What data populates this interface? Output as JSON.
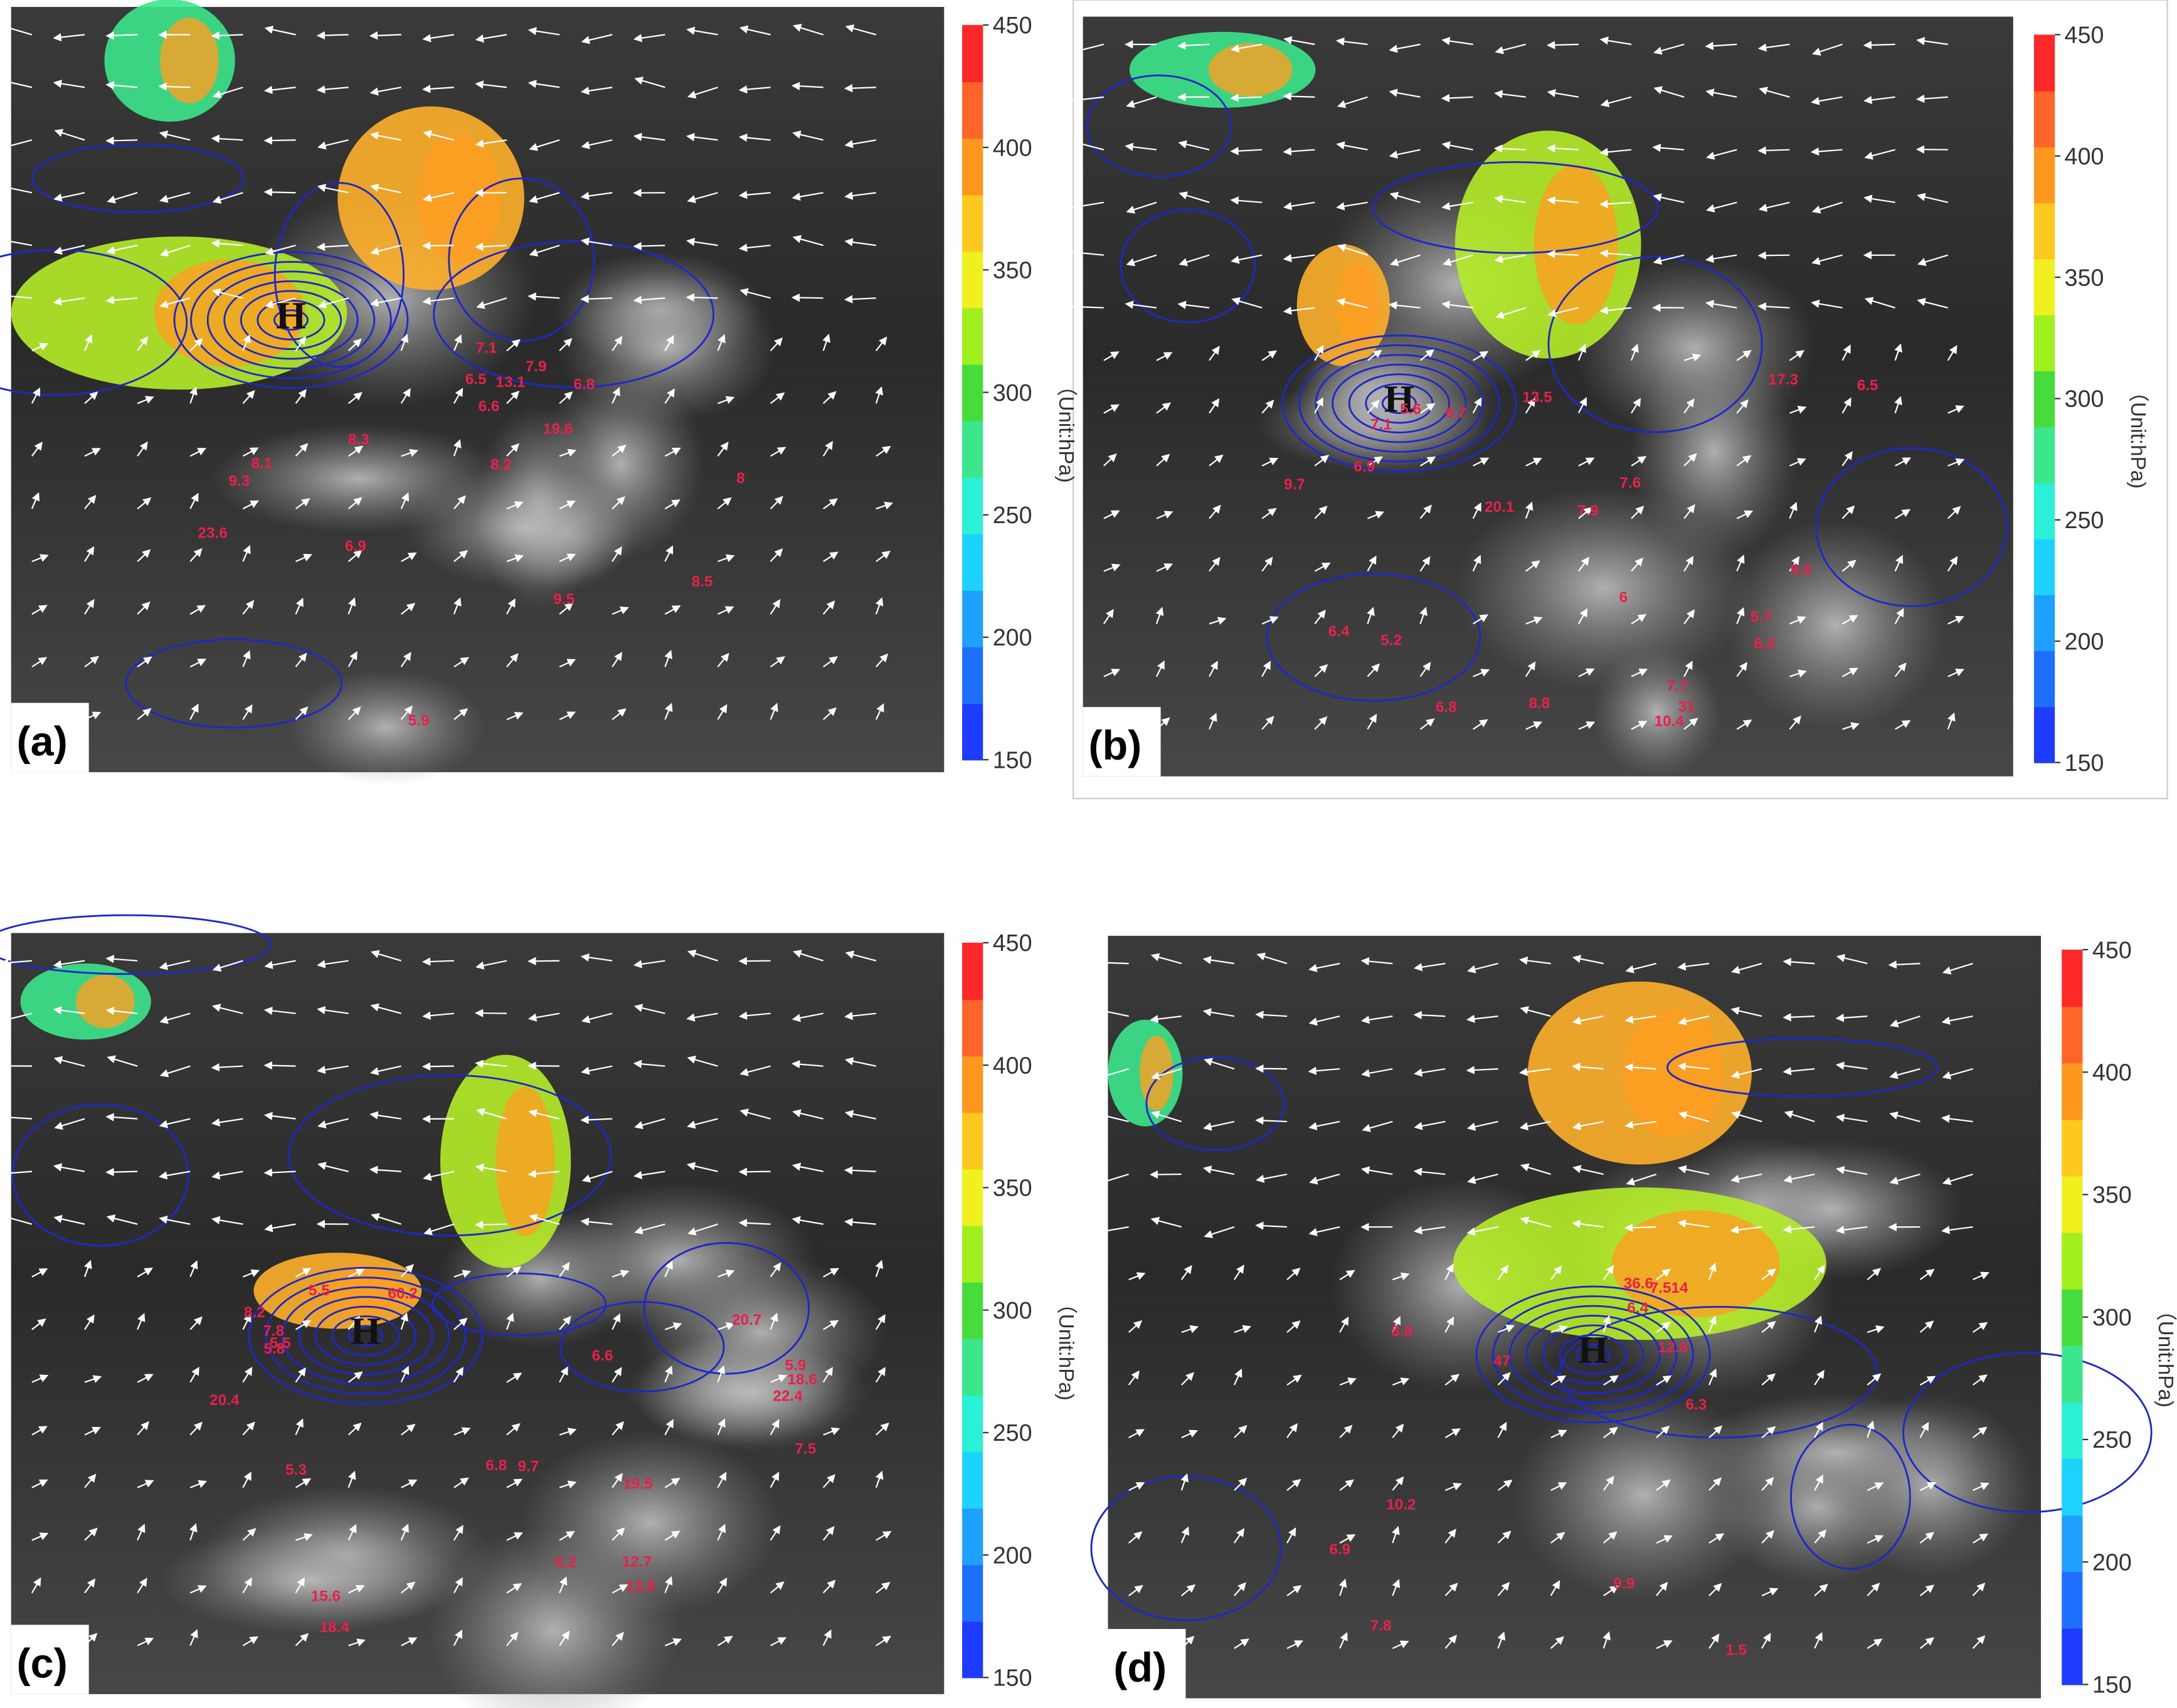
{
  "panels": [
    {
      "label": "(a)",
      "high": "H",
      "unit": "（Unit:hPa)",
      "ticks": [
        150,
        200,
        250,
        300,
        350,
        400,
        450
      ],
      "annotations": [
        "6.5",
        "8",
        "8.3",
        "9.3",
        "5.9",
        "8.5",
        "7.9",
        "6.6",
        "8.2",
        "6.9",
        "19.6",
        "9.5",
        "13.1",
        "23.6",
        "7.1",
        "6.8",
        "8.1"
      ]
    },
    {
      "label": "(b)",
      "high": "H",
      "unit": "（Unit:hPa)",
      "ticks": [
        150,
        200,
        250,
        300,
        350,
        400,
        450
      ],
      "annotations": [
        "20.1",
        "7.7",
        "5.6",
        "6.5",
        "17.3",
        "13.5",
        "6",
        "8.8",
        "7.1",
        "7.9",
        "6.3",
        "5.7",
        "6.4",
        "6.8",
        "10.4",
        "31",
        "5.2",
        "9.7",
        "7.6",
        "9.8",
        "6.7",
        "6.9"
      ]
    },
    {
      "label": "(c)",
      "high": "H",
      "unit": "（Unit:hPa)",
      "ticks": [
        150,
        200,
        250,
        300,
        350,
        400,
        450
      ],
      "annotations": [
        "20.4",
        "5.3",
        "18.6",
        "7.8",
        "5.5",
        "60.2",
        "15.6",
        "9.7",
        "18.4",
        "6.2",
        "13.8",
        "5.9",
        "6.6",
        "7.5",
        "22.4",
        "19.5",
        "12.7",
        "6.8",
        "8.2",
        "5.5",
        "20.7",
        "5.8"
      ]
    },
    {
      "label": "(d)",
      "high": "H",
      "unit": "（Unit:hPa)",
      "ticks": [
        150,
        200,
        250,
        300,
        350,
        400,
        450
      ],
      "annotations": [
        "12.8",
        "6.4",
        "6.3",
        "8.8",
        "47",
        "7.8",
        "1.5",
        "36.6",
        "10.2",
        "7.514",
        "9.9",
        "6.9"
      ]
    }
  ],
  "colorbar_colors": [
    "#1e3cff",
    "#1e6eff",
    "#1ea0ff",
    "#1ed2ff",
    "#2af0d8",
    "#3ce68c",
    "#46dc3c",
    "#a0f01e",
    "#f0f01e",
    "#ffc81e",
    "#ff961e",
    "#ff6428",
    "#ff2828"
  ],
  "colorbar_range": [
    150,
    450
  ]
}
